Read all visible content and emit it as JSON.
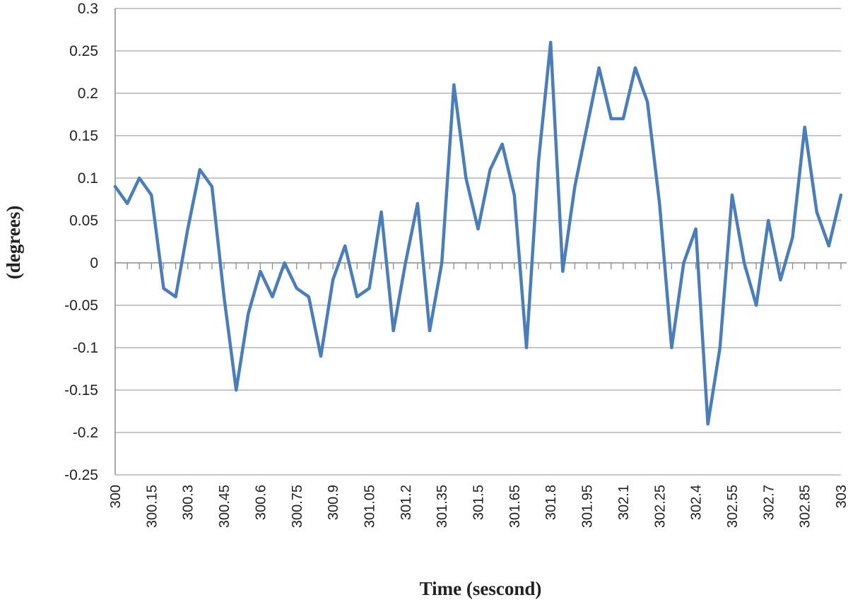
{
  "chart_data": {
    "type": "line",
    "title": "",
    "xlabel": "Time (sescond)",
    "ylabel": "(degrees)",
    "ylim": [
      -0.25,
      0.3
    ],
    "y_ticks": [
      "0.3",
      "0.25",
      "0.2",
      "0.15",
      "0.1",
      "0.05",
      "0",
      "-0.05",
      "-0.1",
      "-0.15",
      "-0.2",
      "-0.25"
    ],
    "x_ticks": [
      "300",
      "300.15",
      "300.3",
      "300.45",
      "300.6",
      "300.75",
      "300.9",
      "301.05",
      "301.2",
      "301.35",
      "301.5",
      "301.65",
      "301.8",
      "301.95",
      "302.1",
      "302.25",
      "302.4",
      "302.55",
      "302.7",
      "302.85",
      "303"
    ],
    "grid": "horizontal",
    "legend": "none",
    "series": [
      {
        "color": "#4a7ebb",
        "x": [
          300,
          300.05,
          300.1,
          300.15,
          300.2,
          300.25,
          300.3,
          300.35,
          300.4,
          300.45,
          300.5,
          300.55,
          300.6,
          300.65,
          300.7,
          300.75,
          300.8,
          300.85,
          300.9,
          300.95,
          301,
          301.05,
          301.1,
          301.15,
          301.2,
          301.25,
          301.3,
          301.35,
          301.4,
          301.45,
          301.5,
          301.55,
          301.6,
          301.65,
          301.7,
          301.75,
          301.8,
          301.85,
          301.9,
          301.95,
          302,
          302.05,
          302.1,
          302.15,
          302.2,
          302.25,
          302.3,
          302.35,
          302.4,
          302.45,
          302.5,
          302.55,
          302.6,
          302.65,
          302.7,
          302.75,
          302.8,
          302.85,
          302.9,
          302.95,
          303
        ],
        "values": [
          0.09,
          0.07,
          0.1,
          0.08,
          -0.03,
          -0.04,
          0.04,
          0.11,
          0.09,
          -0.04,
          -0.15,
          -0.06,
          -0.01,
          -0.04,
          0.0,
          -0.03,
          -0.04,
          -0.11,
          -0.02,
          0.02,
          -0.04,
          -0.03,
          0.06,
          -0.08,
          0.0,
          0.07,
          -0.08,
          0.0,
          0.21,
          0.1,
          0.04,
          0.11,
          0.14,
          0.08,
          -0.1,
          0.12,
          0.26,
          -0.01,
          0.09,
          0.16,
          0.23,
          0.17,
          0.17,
          0.23,
          0.19,
          0.07,
          -0.1,
          0.0,
          0.04,
          -0.19,
          -0.1,
          0.08,
          0.0,
          -0.05,
          0.05,
          -0.02,
          0.03,
          0.16,
          0.06,
          0.02,
          0.08
        ]
      }
    ]
  }
}
